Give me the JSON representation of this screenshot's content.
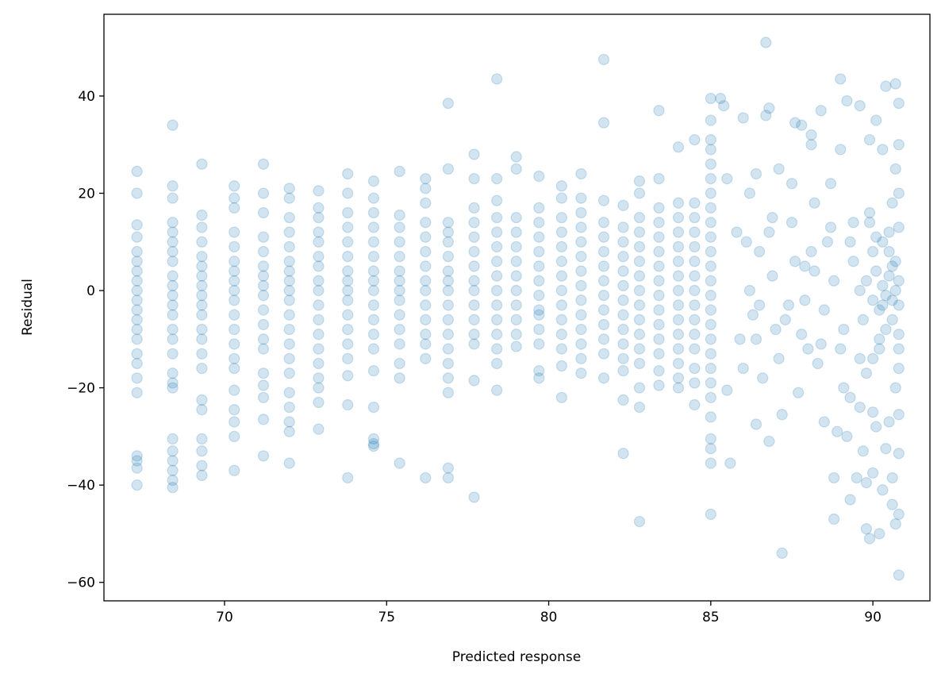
{
  "chart_data": {
    "type": "scatter",
    "title": "",
    "xlabel": "Predicted response",
    "ylabel": "Residual",
    "xlim": [
      66.28,
      91.76
    ],
    "ylim": [
      -63.8,
      56.8
    ],
    "xticks": [
      70,
      75,
      80,
      85,
      90
    ],
    "yticks": [
      -60,
      -40,
      -20,
      0,
      20,
      40
    ],
    "xtick_labels": [
      "70",
      "75",
      "80",
      "85",
      "90"
    ],
    "ytick_labels": [
      "−60",
      "−40",
      "−20",
      "0",
      "20",
      "40"
    ],
    "grid": false,
    "legend": "none",
    "color": "#1f77b4",
    "alpha": 0.2,
    "columns": [
      {
        "x": 67.3,
        "residuals": [
          24.5,
          20,
          13.5,
          11,
          8,
          6,
          4,
          2,
          0,
          -2,
          -4,
          -6,
          -8,
          -10,
          -13,
          -15,
          -18,
          -21,
          -34,
          -35,
          -36.5,
          -40
        ]
      },
      {
        "x": 68.4,
        "residuals": [
          34,
          21.5,
          19,
          14,
          12,
          10,
          8,
          6,
          3,
          1,
          -1,
          -3,
          -5,
          -8,
          -10,
          -13,
          -17,
          -19,
          -20,
          -30.5,
          -33,
          -35,
          -37,
          -39,
          -40.5
        ]
      },
      {
        "x": 69.3,
        "residuals": [
          26,
          15.5,
          13,
          10,
          7,
          5,
          3,
          1,
          -1,
          -3,
          -5,
          -8,
          -10,
          -13,
          -16,
          -22.5,
          -24.5,
          -30.5,
          -33,
          -36,
          -38
        ]
      },
      {
        "x": 70.3,
        "residuals": [
          21.5,
          19,
          17,
          12,
          9,
          6,
          4,
          2,
          0,
          -2,
          -5,
          -8,
          -11,
          -14,
          -16,
          -20.5,
          -24.5,
          -27,
          -30,
          -37
        ]
      },
      {
        "x": 71.2,
        "residuals": [
          26,
          20,
          16,
          11,
          8,
          5,
          3,
          1,
          -1,
          -4,
          -7,
          -10,
          -12,
          -17,
          -19.5,
          -22,
          -26.5,
          -34
        ]
      },
      {
        "x": 72.0,
        "residuals": [
          21,
          19,
          15,
          12,
          9,
          6,
          4,
          2,
          0,
          -2,
          -5,
          -8,
          -11,
          -14,
          -17,
          -21,
          -24,
          -27,
          -29,
          -35.5
        ]
      },
      {
        "x": 72.9,
        "residuals": [
          20.5,
          17,
          15,
          12,
          10,
          7,
          5,
          2,
          0,
          -3,
          -6,
          -9,
          -12,
          -15,
          -18,
          -20,
          -23,
          -28.5
        ]
      },
      {
        "x": 73.8,
        "residuals": [
          24,
          20,
          16,
          13,
          10,
          7,
          4,
          2,
          0,
          -2,
          -5,
          -8,
          -11,
          -14,
          -17.5,
          -23.5,
          -38.5
        ]
      },
      {
        "x": 74.6,
        "residuals": [
          22.5,
          19,
          16,
          13,
          10,
          7,
          4,
          2,
          0,
          -3,
          -6,
          -9,
          -12,
          -16.5,
          -24,
          -30.5,
          -31.5,
          -32
        ]
      },
      {
        "x": 75.4,
        "residuals": [
          24.5,
          15.5,
          13,
          10,
          7,
          4,
          2,
          0,
          -2,
          -5,
          -8,
          -11,
          -15,
          -18,
          -35.5
        ]
      },
      {
        "x": 76.2,
        "residuals": [
          23,
          21,
          18,
          14,
          11,
          8,
          5,
          2,
          0,
          -3,
          -6,
          -9,
          -11,
          -14,
          -38.5
        ]
      },
      {
        "x": 76.9,
        "residuals": [
          38.5,
          25,
          14,
          12,
          10,
          7,
          4,
          2,
          0,
          -3,
          -6,
          -9,
          -12,
          -15,
          -18,
          -21,
          -36.5,
          -38.5
        ]
      },
      {
        "x": 77.7,
        "residuals": [
          28,
          23,
          17,
          14,
          11,
          8,
          5,
          2,
          0,
          -3,
          -6,
          -9,
          -11,
          -18.5,
          -42.5
        ]
      },
      {
        "x": 78.4,
        "residuals": [
          43.5,
          23,
          18.5,
          15,
          12,
          9,
          6,
          3,
          0,
          -3,
          -6,
          -9,
          -12,
          -15,
          -20.5
        ]
      },
      {
        "x": 79.0,
        "residuals": [
          27.5,
          25,
          15,
          12,
          9,
          6,
          3,
          0,
          -3,
          -6,
          -9,
          -11.5
        ]
      },
      {
        "x": 79.7,
        "residuals": [
          23.5,
          17,
          14,
          11,
          8,
          5,
          2,
          -1,
          -4,
          -5,
          -8,
          -11,
          -16.5,
          -18
        ]
      },
      {
        "x": 80.4,
        "residuals": [
          21.5,
          19,
          15,
          12,
          9,
          6,
          3,
          0,
          -3,
          -6,
          -9,
          -12,
          -15.5,
          -22
        ]
      },
      {
        "x": 81.0,
        "residuals": [
          24,
          19,
          16,
          13,
          10,
          7,
          4,
          1,
          -2,
          -5,
          -8,
          -11,
          -14,
          -17
        ]
      },
      {
        "x": 81.7,
        "residuals": [
          47.5,
          34.5,
          18.5,
          14,
          11,
          8,
          5,
          2,
          -1,
          -4,
          -7,
          -10,
          -13,
          -18
        ]
      },
      {
        "x": 82.3,
        "residuals": [
          17.5,
          13,
          10,
          7,
          4,
          1,
          -2,
          -5,
          -8,
          -11,
          -14,
          -16.5,
          -22.5,
          -33.5
        ]
      },
      {
        "x": 82.8,
        "residuals": [
          22.5,
          20,
          15,
          12,
          9,
          6,
          3,
          0,
          -3,
          -6,
          -9,
          -12,
          -15,
          -20,
          -24,
          -47.5
        ]
      },
      {
        "x": 83.4,
        "residuals": [
          37,
          23,
          17,
          14,
          11,
          8,
          5,
          2,
          -1,
          -4,
          -7,
          -10,
          -13,
          -16.5,
          -19.5
        ]
      },
      {
        "x": 84.0,
        "residuals": [
          29.5,
          18,
          15,
          12,
          9,
          6,
          3,
          0,
          -3,
          -6,
          -9,
          -12,
          -15,
          -18,
          -20
        ]
      },
      {
        "x": 84.5,
        "residuals": [
          31,
          18,
          15,
          12,
          9,
          6,
          3,
          0,
          -3,
          -6,
          -9,
          -12,
          -16,
          -19,
          -23.5
        ]
      },
      {
        "x": 85.0,
        "residuals": [
          39.5,
          35,
          31,
          29,
          26,
          23,
          20,
          17,
          14,
          11,
          8,
          5,
          2,
          -1,
          -4,
          -7,
          -10,
          -13,
          -16,
          -19,
          -22,
          -26,
          -30.5,
          -32.5,
          -35.5,
          -46
        ]
      }
    ],
    "scatter_points": [
      [
        85.3,
        39.5
      ],
      [
        85.4,
        38
      ],
      [
        85.5,
        23
      ],
      [
        85.5,
        -20.5
      ],
      [
        85.6,
        -35.5
      ],
      [
        85.8,
        12
      ],
      [
        85.9,
        -10
      ],
      [
        86.0,
        35.5
      ],
      [
        86.0,
        -16
      ],
      [
        86.2,
        20
      ],
      [
        86.3,
        -5
      ],
      [
        86.4,
        24
      ],
      [
        86.4,
        -27.5
      ],
      [
        86.5,
        8
      ],
      [
        86.6,
        -18
      ],
      [
        86.7,
        51
      ],
      [
        86.7,
        36
      ],
      [
        86.8,
        37.5
      ],
      [
        86.8,
        -31
      ],
      [
        86.9,
        15
      ],
      [
        87.0,
        -8
      ],
      [
        87.1,
        25
      ],
      [
        87.2,
        -25.5
      ],
      [
        87.2,
        -54
      ],
      [
        87.4,
        -3
      ],
      [
        87.5,
        22
      ],
      [
        87.6,
        34.5
      ],
      [
        87.7,
        -21
      ],
      [
        87.8,
        34
      ],
      [
        87.9,
        5
      ],
      [
        88.0,
        -12
      ],
      [
        88.1,
        30
      ],
      [
        88.1,
        32
      ],
      [
        88.2,
        18
      ],
      [
        88.3,
        -15
      ],
      [
        88.4,
        37
      ],
      [
        88.5,
        -27
      ],
      [
        88.6,
        10
      ],
      [
        88.7,
        22
      ],
      [
        88.8,
        -47
      ],
      [
        88.8,
        -38.5
      ],
      [
        88.9,
        -29
      ],
      [
        89.0,
        43.5
      ],
      [
        89.0,
        29
      ],
      [
        89.1,
        -20
      ],
      [
        89.2,
        -30
      ],
      [
        89.2,
        39
      ],
      [
        89.3,
        -43
      ],
      [
        89.3,
        -22
      ],
      [
        89.4,
        14
      ],
      [
        89.5,
        -38.5
      ],
      [
        89.6,
        38
      ],
      [
        89.6,
        -24
      ],
      [
        89.7,
        -33
      ],
      [
        89.8,
        -39.5
      ],
      [
        89.8,
        -49
      ],
      [
        89.9,
        31
      ],
      [
        89.9,
        -51
      ],
      [
        90.0,
        -25
      ],
      [
        90.0,
        -37.5
      ],
      [
        90.1,
        35
      ],
      [
        90.1,
        -28
      ],
      [
        90.2,
        -50
      ],
      [
        90.3,
        -41
      ],
      [
        90.3,
        29
      ],
      [
        90.4,
        -32.5
      ],
      [
        90.4,
        42
      ],
      [
        90.5,
        -27
      ],
      [
        90.6,
        -44
      ],
      [
        90.6,
        -38.5
      ],
      [
        90.7,
        42.5
      ],
      [
        90.7,
        -48
      ],
      [
        90.8,
        -58.5
      ],
      [
        90.8,
        -46
      ],
      [
        90.8,
        -33.5
      ],
      [
        90.8,
        38.5
      ],
      [
        90.8,
        -25.5
      ],
      [
        86.2,
        0
      ],
      [
        86.5,
        -3
      ],
      [
        86.9,
        3
      ],
      [
        87.3,
        -6
      ],
      [
        87.6,
        6
      ],
      [
        87.9,
        -2
      ],
      [
        88.2,
        4
      ],
      [
        88.5,
        -4
      ],
      [
        88.8,
        2
      ],
      [
        89.1,
        -8
      ],
      [
        89.4,
        6
      ],
      [
        89.7,
        -6
      ],
      [
        90.0,
        8
      ],
      [
        90.3,
        -3
      ],
      [
        90.6,
        5
      ],
      [
        90.8,
        -9
      ],
      [
        86.1,
        10
      ],
      [
        86.4,
        -10
      ],
      [
        86.8,
        12
      ],
      [
        87.1,
        -14
      ],
      [
        87.5,
        14
      ],
      [
        87.8,
        -9
      ],
      [
        88.1,
        8
      ],
      [
        88.4,
        -11
      ],
      [
        88.7,
        13
      ],
      [
        89.0,
        -12
      ],
      [
        89.3,
        10
      ],
      [
        89.6,
        -14
      ],
      [
        89.9,
        14
      ],
      [
        90.2,
        -10
      ],
      [
        90.5,
        12
      ],
      [
        90.8,
        -16
      ],
      [
        89.6,
        0
      ],
      [
        89.8,
        2
      ],
      [
        90.0,
        -2
      ],
      [
        90.1,
        4
      ],
      [
        90.2,
        -4
      ],
      [
        90.3,
        1
      ],
      [
        90.4,
        -1
      ],
      [
        90.5,
        3
      ],
      [
        90.6,
        -2
      ],
      [
        90.7,
        0
      ],
      [
        90.8,
        2
      ],
      [
        90.8,
        -3
      ],
      [
        90.7,
        6
      ],
      [
        90.6,
        -6
      ],
      [
        90.5,
        8
      ],
      [
        90.4,
        -8
      ],
      [
        90.3,
        10
      ],
      [
        90.2,
        -12
      ],
      [
        90.1,
        11
      ],
      [
        90.0,
        -14
      ],
      [
        89.9,
        16
      ],
      [
        89.8,
        -17
      ],
      [
        90.6,
        18
      ],
      [
        90.7,
        -20
      ],
      [
        90.8,
        20
      ],
      [
        90.8,
        13
      ],
      [
        90.8,
        -12
      ],
      [
        90.7,
        25
      ],
      [
        90.8,
        30
      ]
    ]
  }
}
